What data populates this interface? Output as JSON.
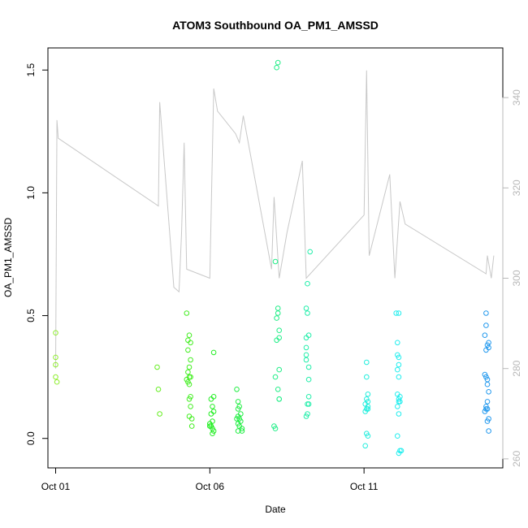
{
  "chart_data": {
    "type": "scatter",
    "title": "ATOM3 Southbound OA_PM1_AMSSD",
    "xlabel": "Date",
    "ylabel": "OA_PM1_AMSSD",
    "x_ticks": [
      "Oct 01",
      "Oct 06",
      "Oct 11"
    ],
    "y_ticks": [
      "0.0",
      "0.5",
      "1.0",
      "1.5"
    ],
    "y2_ticks": [
      "260",
      "280",
      "300",
      "320",
      "340"
    ],
    "xlim": [
      "2016-09-30T18:00",
      "2016-10-15T12:00"
    ],
    "ylim": [
      -0.12,
      1.59
    ],
    "y2lim": [
      258,
      351
    ],
    "grid": false,
    "legend": "none",
    "marker": "open-circle",
    "secondary_series": {
      "type": "line",
      "axis": "right",
      "color": "#c8c8c8",
      "points": [
        [
          "2016-10-01T00:00",
          280
        ],
        [
          "2016-10-01T01:00",
          335
        ],
        [
          "2016-10-01T02:00",
          331
        ],
        [
          "2016-10-04T08:00",
          316
        ],
        [
          "2016-10-04T09:00",
          339
        ],
        [
          "2016-10-04T20:00",
          298
        ],
        [
          "2016-10-05T00:00",
          297
        ],
        [
          "2016-10-05T02:00",
          310
        ],
        [
          "2016-10-05T04:00",
          330
        ],
        [
          "2016-10-05T06:00",
          302
        ],
        [
          "2016-10-06T00:00",
          300
        ],
        [
          "2016-10-06T03:00",
          342
        ],
        [
          "2016-10-06T06:00",
          337
        ],
        [
          "2016-10-06T20:00",
          332
        ],
        [
          "2016-10-06T23:00",
          330
        ],
        [
          "2016-10-07T02:00",
          336
        ],
        [
          "2016-10-08T00:00",
          302
        ],
        [
          "2016-10-08T02:00",
          318
        ],
        [
          "2016-10-08T06:00",
          300
        ],
        [
          "2016-10-08T12:00",
          310
        ],
        [
          "2016-10-09T00:00",
          326
        ],
        [
          "2016-10-09T03:00",
          300
        ],
        [
          "2016-10-11T00:00",
          314
        ],
        [
          "2016-10-11T02:00",
          346
        ],
        [
          "2016-10-11T04:00",
          305
        ],
        [
          "2016-10-11T20:00",
          323
        ],
        [
          "2016-10-12T00:00",
          300
        ],
        [
          "2016-10-12T04:00",
          317
        ],
        [
          "2016-10-12T08:00",
          312
        ],
        [
          "2016-10-14T23:00",
          301
        ],
        [
          "2016-10-15T00:00",
          305
        ],
        [
          "2016-10-15T03:00",
          300
        ],
        [
          "2016-10-15T05:00",
          305
        ]
      ]
    },
    "series": [
      {
        "color": "#90ee30",
        "points": [
          [
            "2016-10-01T00:00",
            0.43
          ],
          [
            "2016-10-01T00:00",
            0.33
          ],
          [
            "2016-10-01T00:00",
            0.3
          ],
          [
            "2016-10-01T00:00",
            0.25
          ],
          [
            "2016-10-01T01:00",
            0.23
          ]
        ]
      },
      {
        "color": "#66ee22",
        "points": [
          [
            "2016-10-04T07:00",
            0.29
          ],
          [
            "2016-10-04T08:00",
            0.2
          ],
          [
            "2016-10-04T09:00",
            0.1
          ]
        ]
      },
      {
        "color": "#44ee22",
        "points": [
          [
            "2016-10-05T06:00",
            0.51
          ],
          [
            "2016-10-05T07:00",
            0.4
          ],
          [
            "2016-10-05T08:00",
            0.42
          ],
          [
            "2016-10-05T07:00",
            0.36
          ],
          [
            "2016-10-05T09:00",
            0.39
          ],
          [
            "2016-10-05T09:00",
            0.32
          ],
          [
            "2016-10-05T08:00",
            0.29
          ],
          [
            "2016-10-05T07:00",
            0.27
          ],
          [
            "2016-10-05T08:00",
            0.25
          ],
          [
            "2016-10-05T09:00",
            0.25
          ],
          [
            "2016-10-05T06:00",
            0.24
          ],
          [
            "2016-10-05T07:00",
            0.23
          ],
          [
            "2016-10-05T08:00",
            0.22
          ],
          [
            "2016-10-05T08:00",
            0.16
          ],
          [
            "2016-10-05T09:00",
            0.17
          ],
          [
            "2016-10-05T09:00",
            0.13
          ],
          [
            "2016-10-05T08:00",
            0.09
          ],
          [
            "2016-10-05T10:00",
            0.08
          ],
          [
            "2016-10-05T10:00",
            0.05
          ]
        ]
      },
      {
        "color": "#22ee22",
        "points": [
          [
            "2016-10-06T03:00",
            0.35
          ],
          [
            "2016-10-06T01:00",
            0.16
          ],
          [
            "2016-10-06T03:00",
            0.17
          ],
          [
            "2016-10-06T02:00",
            0.13
          ],
          [
            "2016-10-06T01:00",
            0.1
          ],
          [
            "2016-10-06T03:00",
            0.11
          ],
          [
            "2016-10-06T00:00",
            0.06
          ],
          [
            "2016-10-06T02:00",
            0.07
          ],
          [
            "2016-10-06T01:00",
            0.05
          ],
          [
            "2016-10-06T02:00",
            0.04
          ],
          [
            "2016-10-06T03:00",
            0.03
          ],
          [
            "2016-10-06T02:00",
            0.02
          ],
          [
            "2016-10-06T00:00",
            0.05
          ]
        ]
      },
      {
        "color": "#22ee44",
        "points": [
          [
            "2016-10-06T21:00",
            0.2
          ],
          [
            "2016-10-06T22:00",
            0.15
          ],
          [
            "2016-10-06T23:00",
            0.13
          ],
          [
            "2016-10-06T22:00",
            0.12
          ],
          [
            "2016-10-07T00:00",
            0.1
          ],
          [
            "2016-10-06T22:00",
            0.09
          ],
          [
            "2016-10-06T21:00",
            0.08
          ],
          [
            "2016-10-06T23:00",
            0.08
          ],
          [
            "2016-10-07T00:00",
            0.07
          ],
          [
            "2016-10-06T22:00",
            0.06
          ],
          [
            "2016-10-06T23:00",
            0.05
          ],
          [
            "2016-10-07T01:00",
            0.04
          ],
          [
            "2016-10-06T22:00",
            0.03
          ],
          [
            "2016-10-07T01:00",
            0.03
          ]
        ]
      },
      {
        "color": "#22ee88",
        "points": [
          [
            "2016-10-08T05:00",
            1.53
          ],
          [
            "2016-10-08T04:00",
            1.51
          ],
          [
            "2016-10-08T03:00",
            0.72
          ],
          [
            "2016-10-08T05:00",
            0.53
          ],
          [
            "2016-10-08T05:00",
            0.51
          ],
          [
            "2016-10-08T04:00",
            0.49
          ],
          [
            "2016-10-08T06:00",
            0.44
          ],
          [
            "2016-10-08T06:00",
            0.41
          ],
          [
            "2016-10-08T04:00",
            0.4
          ],
          [
            "2016-10-08T06:00",
            0.28
          ],
          [
            "2016-10-08T03:00",
            0.25
          ],
          [
            "2016-10-08T05:00",
            0.2
          ],
          [
            "2016-10-08T06:00",
            0.16
          ],
          [
            "2016-10-08T06:00",
            0.16
          ],
          [
            "2016-10-08T02:00",
            0.05
          ],
          [
            "2016-10-08T03:00",
            0.04
          ]
        ]
      },
      {
        "color": "#22eeaa",
        "points": [
          [
            "2016-10-09T06:00",
            0.76
          ],
          [
            "2016-10-09T04:00",
            0.63
          ],
          [
            "2016-10-09T03:00",
            0.53
          ],
          [
            "2016-10-09T04:00",
            0.51
          ],
          [
            "2016-10-09T05:00",
            0.42
          ],
          [
            "2016-10-09T03:00",
            0.41
          ],
          [
            "2016-10-09T03:00",
            0.37
          ],
          [
            "2016-10-09T03:00",
            0.34
          ],
          [
            "2016-10-09T03:00",
            0.32
          ],
          [
            "2016-10-09T05:00",
            0.29
          ],
          [
            "2016-10-09T05:00",
            0.24
          ],
          [
            "2016-10-09T05:00",
            0.17
          ],
          [
            "2016-10-09T04:00",
            0.14
          ],
          [
            "2016-10-09T05:00",
            0.14
          ],
          [
            "2016-10-09T04:00",
            0.1
          ],
          [
            "2016-10-09T03:00",
            0.09
          ]
        ]
      },
      {
        "color": "#22eedd",
        "points": [
          [
            "2016-10-11T02:00",
            0.31
          ],
          [
            "2016-10-11T02:00",
            0.25
          ],
          [
            "2016-10-11T03:00",
            0.18
          ],
          [
            "2016-10-11T02:00",
            0.16
          ],
          [
            "2016-10-11T03:00",
            0.15
          ],
          [
            "2016-10-11T01:00",
            0.14
          ],
          [
            "2016-10-11T03:00",
            0.13
          ],
          [
            "2016-10-11T02:00",
            0.12
          ],
          [
            "2016-10-11T01:00",
            0.11
          ],
          [
            "2016-10-11T03:00",
            0.12
          ],
          [
            "2016-10-11T02:00",
            0.02
          ],
          [
            "2016-10-11T03:00",
            0.01
          ],
          [
            "2016-10-11T01:00",
            -0.03
          ]
        ]
      },
      {
        "color": "#22eeee",
        "points": [
          [
            "2016-10-12T01:00",
            0.51
          ],
          [
            "2016-10-12T03:00",
            0.51
          ],
          [
            "2016-10-12T02:00",
            0.39
          ],
          [
            "2016-10-12T02:00",
            0.34
          ],
          [
            "2016-10-12T03:00",
            0.33
          ],
          [
            "2016-10-12T03:00",
            0.3
          ],
          [
            "2016-10-12T02:00",
            0.28
          ],
          [
            "2016-10-12T03:00",
            0.25
          ],
          [
            "2016-10-12T02:00",
            0.18
          ],
          [
            "2016-10-12T04:00",
            0.17
          ],
          [
            "2016-10-12T03:00",
            0.16
          ],
          [
            "2016-10-12T03:00",
            0.15
          ],
          [
            "2016-10-12T04:00",
            0.15
          ],
          [
            "2016-10-12T02:00",
            0.13
          ],
          [
            "2016-10-12T03:00",
            0.1
          ],
          [
            "2016-10-12T02:00",
            0.01
          ],
          [
            "2016-10-12T05:00",
            -0.05
          ],
          [
            "2016-10-12T04:00",
            -0.05
          ],
          [
            "2016-10-12T03:00",
            -0.06
          ]
        ]
      },
      {
        "color": "#2299ee",
        "points": [
          [
            "2016-10-14T23:00",
            0.51
          ],
          [
            "2016-10-14T23:00",
            0.46
          ],
          [
            "2016-10-14T22:00",
            0.42
          ],
          [
            "2016-10-15T01:00",
            0.39
          ],
          [
            "2016-10-15T00:00",
            0.38
          ],
          [
            "2016-10-15T01:00",
            0.37
          ],
          [
            "2016-10-14T23:00",
            0.36
          ],
          [
            "2016-10-14T22:00",
            0.26
          ],
          [
            "2016-10-14T23:00",
            0.25
          ],
          [
            "2016-10-15T00:00",
            0.24
          ],
          [
            "2016-10-15T00:00",
            0.22
          ],
          [
            "2016-10-15T01:00",
            0.19
          ],
          [
            "2016-10-15T00:00",
            0.15
          ],
          [
            "2016-10-14T23:00",
            0.13
          ],
          [
            "2016-10-14T23:00",
            0.12
          ],
          [
            "2016-10-15T00:00",
            0.12
          ],
          [
            "2016-10-14T22:00",
            0.11
          ],
          [
            "2016-10-15T01:00",
            0.08
          ],
          [
            "2016-10-15T00:00",
            0.07
          ],
          [
            "2016-10-15T01:00",
            0.03
          ]
        ]
      }
    ]
  }
}
